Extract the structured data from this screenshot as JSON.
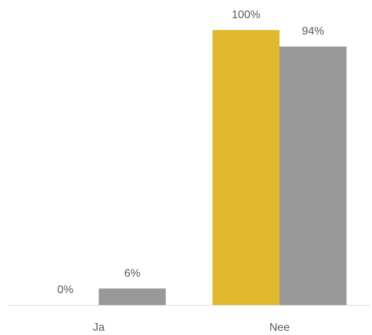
{
  "chart_data": {
    "type": "bar",
    "categories": [
      "Ja",
      "Nee"
    ],
    "series": [
      {
        "color": "#E0B92E",
        "values": [
          0,
          100
        ]
      },
      {
        "color": "#989898",
        "values": [
          6,
          94
        ]
      }
    ],
    "data_labels": [
      [
        "0%",
        "100%"
      ],
      [
        "6%",
        "94%"
      ]
    ],
    "ylim": [
      0,
      100
    ],
    "grid": false,
    "legend": "none",
    "baseline_color": "#D9D9D9"
  }
}
